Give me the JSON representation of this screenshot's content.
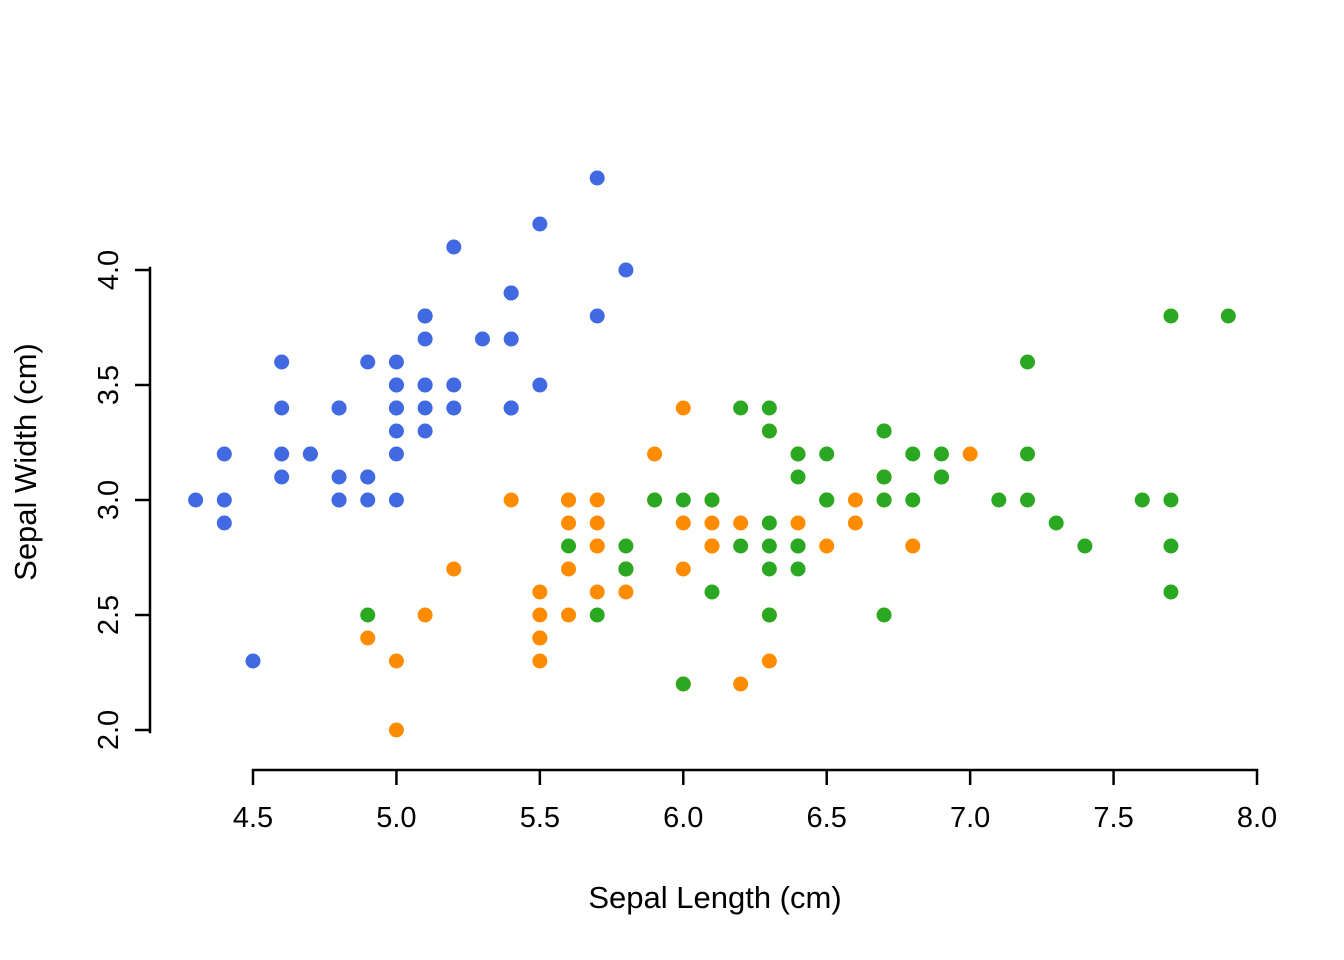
{
  "page": {
    "background": "#ffffff"
  },
  "chart_data": {
    "type": "scatter",
    "title": "",
    "xlabel": "Sepal Length (cm)",
    "ylabel": "Sepal Width (cm)",
    "xlim": [
      4.3,
      8.0
    ],
    "ylim": [
      2.0,
      4.4
    ],
    "x_ticks": [
      "4.5",
      "5.0",
      "5.5",
      "6.0",
      "6.5",
      "7.0",
      "7.5",
      "8.0"
    ],
    "y_ticks": [
      "2.0",
      "2.5",
      "3.0",
      "3.5",
      "4.0"
    ],
    "grid": false,
    "legend_position": "none",
    "marker": "filled-circle",
    "series": [
      {
        "name": "blue",
        "color": "#4169E1",
        "points": [
          [
            5.1,
            3.5
          ],
          [
            4.9,
            3.0
          ],
          [
            4.7,
            3.2
          ],
          [
            4.6,
            3.1
          ],
          [
            5.0,
            3.6
          ],
          [
            5.4,
            3.9
          ],
          [
            4.6,
            3.4
          ],
          [
            5.0,
            3.4
          ],
          [
            4.4,
            2.9
          ],
          [
            4.9,
            3.1
          ],
          [
            5.4,
            3.7
          ],
          [
            4.8,
            3.4
          ],
          [
            4.8,
            3.0
          ],
          [
            4.3,
            3.0
          ],
          [
            5.8,
            4.0
          ],
          [
            5.7,
            4.4
          ],
          [
            5.4,
            3.9
          ],
          [
            5.1,
            3.5
          ],
          [
            5.7,
            3.8
          ],
          [
            5.1,
            3.8
          ],
          [
            5.4,
            3.4
          ],
          [
            5.1,
            3.7
          ],
          [
            4.6,
            3.6
          ],
          [
            5.1,
            3.3
          ],
          [
            4.8,
            3.4
          ],
          [
            5.0,
            3.0
          ],
          [
            5.0,
            3.4
          ],
          [
            5.2,
            3.5
          ],
          [
            5.2,
            3.4
          ],
          [
            4.7,
            3.2
          ],
          [
            4.8,
            3.1
          ],
          [
            5.4,
            3.4
          ],
          [
            5.2,
            4.1
          ],
          [
            5.5,
            4.2
          ],
          [
            4.9,
            3.1
          ],
          [
            5.0,
            3.2
          ],
          [
            5.5,
            3.5
          ],
          [
            4.9,
            3.6
          ],
          [
            4.4,
            3.0
          ],
          [
            5.1,
            3.4
          ],
          [
            5.0,
            3.5
          ],
          [
            4.5,
            2.3
          ],
          [
            4.4,
            3.2
          ],
          [
            5.0,
            3.5
          ],
          [
            5.1,
            3.8
          ],
          [
            4.8,
            3.0
          ],
          [
            5.1,
            3.8
          ],
          [
            4.6,
            3.2
          ],
          [
            5.3,
            3.7
          ],
          [
            5.0,
            3.3
          ]
        ]
      },
      {
        "name": "orange",
        "color": "#FF8C00",
        "points": [
          [
            7.0,
            3.2
          ],
          [
            6.4,
            3.2
          ],
          [
            6.9,
            3.1
          ],
          [
            5.5,
            2.3
          ],
          [
            6.5,
            2.8
          ],
          [
            5.7,
            2.8
          ],
          [
            6.3,
            3.3
          ],
          [
            4.9,
            2.4
          ],
          [
            6.6,
            2.9
          ],
          [
            5.2,
            2.7
          ],
          [
            5.0,
            2.0
          ],
          [
            5.9,
            3.0
          ],
          [
            6.0,
            2.2
          ],
          [
            6.1,
            2.9
          ],
          [
            5.6,
            2.9
          ],
          [
            6.7,
            3.1
          ],
          [
            5.6,
            3.0
          ],
          [
            5.8,
            2.7
          ],
          [
            6.2,
            2.2
          ],
          [
            5.6,
            2.5
          ],
          [
            5.9,
            3.2
          ],
          [
            6.1,
            2.8
          ],
          [
            6.3,
            2.5
          ],
          [
            6.1,
            2.8
          ],
          [
            6.4,
            2.9
          ],
          [
            6.6,
            3.0
          ],
          [
            6.8,
            2.8
          ],
          [
            6.7,
            3.0
          ],
          [
            6.0,
            2.9
          ],
          [
            5.7,
            2.6
          ],
          [
            5.5,
            2.4
          ],
          [
            5.5,
            2.4
          ],
          [
            5.8,
            2.7
          ],
          [
            6.0,
            2.7
          ],
          [
            5.4,
            3.0
          ],
          [
            6.0,
            3.4
          ],
          [
            6.7,
            3.1
          ],
          [
            6.3,
            2.3
          ],
          [
            5.6,
            3.0
          ],
          [
            5.5,
            2.5
          ],
          [
            5.5,
            2.6
          ],
          [
            6.1,
            3.0
          ],
          [
            5.8,
            2.6
          ],
          [
            5.0,
            2.3
          ],
          [
            5.6,
            2.7
          ],
          [
            5.7,
            3.0
          ],
          [
            5.7,
            2.9
          ],
          [
            6.2,
            2.9
          ],
          [
            5.1,
            2.5
          ],
          [
            5.7,
            2.8
          ]
        ]
      },
      {
        "name": "green",
        "color": "#2AA821",
        "points": [
          [
            6.3,
            3.3
          ],
          [
            5.8,
            2.7
          ],
          [
            7.1,
            3.0
          ],
          [
            6.3,
            2.9
          ],
          [
            6.5,
            3.0
          ],
          [
            7.6,
            3.0
          ],
          [
            4.9,
            2.5
          ],
          [
            7.3,
            2.9
          ],
          [
            6.7,
            2.5
          ],
          [
            7.2,
            3.6
          ],
          [
            6.5,
            3.2
          ],
          [
            6.4,
            2.7
          ],
          [
            6.8,
            3.0
          ],
          [
            5.7,
            2.5
          ],
          [
            5.8,
            2.8
          ],
          [
            6.4,
            3.2
          ],
          [
            6.5,
            3.0
          ],
          [
            7.7,
            3.8
          ],
          [
            7.7,
            2.6
          ],
          [
            6.0,
            2.2
          ],
          [
            6.9,
            3.2
          ],
          [
            5.6,
            2.8
          ],
          [
            7.7,
            2.8
          ],
          [
            6.3,
            2.7
          ],
          [
            6.7,
            3.3
          ],
          [
            7.2,
            3.2
          ],
          [
            6.2,
            2.8
          ],
          [
            6.1,
            3.0
          ],
          [
            6.4,
            2.8
          ],
          [
            7.2,
            3.0
          ],
          [
            7.4,
            2.8
          ],
          [
            7.9,
            3.8
          ],
          [
            6.4,
            2.8
          ],
          [
            6.3,
            2.8
          ],
          [
            6.1,
            2.6
          ],
          [
            7.7,
            3.0
          ],
          [
            6.3,
            3.4
          ],
          [
            6.4,
            3.1
          ],
          [
            6.0,
            3.0
          ],
          [
            6.9,
            3.1
          ],
          [
            6.7,
            3.1
          ],
          [
            6.9,
            3.1
          ],
          [
            5.8,
            2.7
          ],
          [
            6.8,
            3.2
          ],
          [
            6.7,
            3.3
          ],
          [
            6.7,
            3.0
          ],
          [
            6.3,
            2.5
          ],
          [
            6.5,
            3.0
          ],
          [
            6.2,
            3.4
          ],
          [
            5.9,
            3.0
          ]
        ]
      }
    ]
  }
}
